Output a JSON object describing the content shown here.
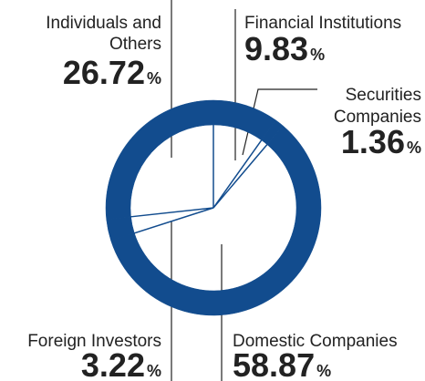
{
  "chart_data": {
    "type": "donut",
    "categories": [
      [
        "Financial Institutions"
      ],
      [
        "Securities",
        "Companies"
      ],
      [
        "Domestic Companies"
      ],
      [
        "Foreign Investors"
      ],
      [
        "Individuals and",
        "Others"
      ]
    ],
    "values": [
      9.83,
      1.36,
      58.87,
      3.22,
      26.72
    ],
    "unit": "%",
    "color": "#124c8e"
  }
}
